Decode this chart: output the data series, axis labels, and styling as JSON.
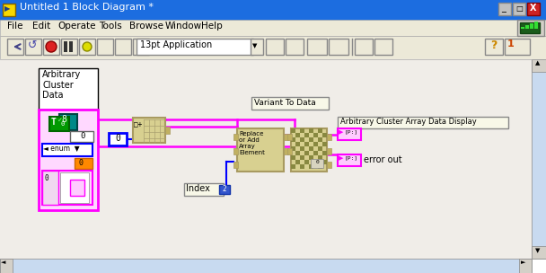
{
  "title_bar_text": "Untitled 1 Block Diagram *",
  "title_bar_bg": "#1c6de0",
  "title_bar_fg": "#ffffff",
  "menu_bg": "#d4d0c8",
  "canvas_bg": "#f0ede8",
  "toolbar_bg": "#d4d0c8",
  "scrollbar_bg": "#c0d0e8",
  "font_dropdown": "13pt Application",
  "menu_items": [
    "File",
    "Edit",
    "Operate",
    "Tools",
    "Browse",
    "Window",
    "Help"
  ],
  "pink": "#ff00ff",
  "blue": "#0000ff",
  "orange": "#ff8800",
  "green": "#008800",
  "teal": "#008888",
  "tan": "#d8d090",
  "tan_border": "#a89a60",
  "white": "#ffffff",
  "black": "#000000",
  "gray": "#d4d0c8",
  "light_yellow": "#f0f0d0",
  "label_arbitrary": "Arbitrary\nCluster\nData",
  "label_variant": "Variant To Data",
  "label_display": "Arbitrary Cluster Array Data Display",
  "label_replace": "Replace\nor Add\nArray\nElement",
  "label_index": "Index",
  "label_index_val": "2",
  "label_error_out": "error out",
  "scrollbar_light": "#c8daf0"
}
